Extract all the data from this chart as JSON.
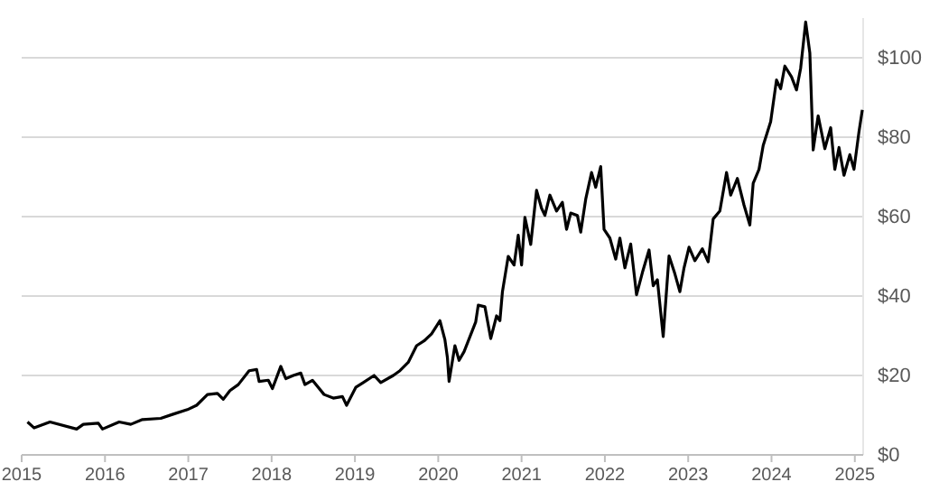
{
  "chart_data": {
    "type": "line",
    "x": [
      2015.07,
      2015.15,
      2015.34,
      2015.66,
      2015.74,
      2015.92,
      2015.97,
      2016.17,
      2016.31,
      2016.45,
      2016.67,
      2016.81,
      2016.99,
      2017.1,
      2017.23,
      2017.35,
      2017.42,
      2017.5,
      2017.6,
      2017.73,
      2017.82,
      2017.85,
      2017.96,
      2018.01,
      2018.11,
      2018.17,
      2018.26,
      2018.35,
      2018.4,
      2018.49,
      2018.63,
      2018.74,
      2018.85,
      2018.9,
      2019.01,
      2019.1,
      2019.23,
      2019.31,
      2019.46,
      2019.54,
      2019.64,
      2019.74,
      2019.83,
      2019.92,
      2020.02,
      2020.08,
      2020.11,
      2020.13,
      2020.2,
      2020.25,
      2020.31,
      2020.45,
      2020.48,
      2020.56,
      2020.63,
      2020.7,
      2020.74,
      2020.77,
      2020.84,
      2020.91,
      2020.96,
      2021.0,
      2021.04,
      2021.11,
      2021.18,
      2021.24,
      2021.28,
      2021.34,
      2021.42,
      2021.49,
      2021.54,
      2021.59,
      2021.67,
      2021.71,
      2021.77,
      2021.84,
      2021.89,
      2021.95,
      2021.99,
      2022.06,
      2022.13,
      2022.18,
      2022.24,
      2022.31,
      2022.38,
      2022.45,
      2022.53,
      2022.58,
      2022.63,
      2022.7,
      2022.77,
      2022.84,
      2022.9,
      2022.95,
      2023.01,
      2023.08,
      2023.17,
      2023.24,
      2023.3,
      2023.38,
      2023.46,
      2023.51,
      2023.59,
      2023.67,
      2023.74,
      2023.78,
      2023.85,
      2023.9,
      2023.99,
      2024.06,
      2024.11,
      2024.16,
      2024.24,
      2024.3,
      2024.35,
      2024.41,
      2024.46,
      2024.5,
      2024.56,
      2024.64,
      2024.71,
      2024.76,
      2024.81,
      2024.87,
      2024.94,
      2024.99,
      2025.05,
      2025.09
    ],
    "series": [
      {
        "color": "#000000",
        "values": [
          8.3,
          6.8,
          8.3,
          6.5,
          7.7,
          8.0,
          6.5,
          8.3,
          7.7,
          8.9,
          9.2,
          10.2,
          11.4,
          12.5,
          15.2,
          15.5,
          14,
          16.2,
          17.7,
          21.2,
          21.5,
          18.5,
          18.8,
          16.7,
          22.3,
          19.2,
          20,
          20.6,
          17.7,
          18.8,
          15.2,
          14.3,
          14.7,
          12.5,
          17,
          18.2,
          20,
          18.2,
          20,
          21.2,
          23.3,
          27.5,
          28.7,
          30.5,
          33.8,
          29,
          24.5,
          18.5,
          27.5,
          23.8,
          26,
          33.5,
          37.7,
          37.3,
          29.3,
          35,
          33.8,
          41,
          50,
          47.8,
          55.3,
          47.8,
          59.8,
          53,
          66.6,
          62.1,
          60.3,
          65.4,
          61.4,
          63.6,
          56.8,
          60.9,
          60.3,
          56.1,
          64.4,
          71.1,
          67.4,
          72.6,
          56.8,
          54.6,
          49.3,
          54.6,
          47.1,
          53.1,
          40.3,
          45.9,
          51.6,
          42.6,
          44.1,
          29.8,
          50.1,
          45.6,
          41.1,
          47.1,
          52.3,
          48.9,
          51.9,
          48.6,
          59.4,
          61.4,
          71.1,
          65.4,
          69.6,
          62.9,
          57.9,
          68.4,
          71.9,
          77.9,
          83.9,
          94.4,
          92.2,
          97.9,
          95.2,
          91.9,
          97.4,
          109,
          101.2,
          76.8,
          85.4,
          77.1,
          82.4,
          71.9,
          77.4,
          70.4,
          75.6,
          71.9,
          81.4,
          86.9
        ]
      }
    ],
    "xlim": [
      2015,
      2025.1
    ],
    "xticks": [
      2015,
      2016,
      2017,
      2018,
      2019,
      2020,
      2021,
      2022,
      2023,
      2024,
      2025
    ],
    "ylim": [
      0,
      110
    ],
    "yticks": [
      {
        "value": 0,
        "label": "$0"
      },
      {
        "value": 20,
        "label": "$20"
      },
      {
        "value": 40,
        "label": "$40"
      },
      {
        "value": 60,
        "label": "$60"
      },
      {
        "value": 80,
        "label": "$80"
      },
      {
        "value": 100,
        "label": "$100"
      }
    ],
    "grid": "y",
    "marker": "none",
    "line_style": "solid"
  }
}
